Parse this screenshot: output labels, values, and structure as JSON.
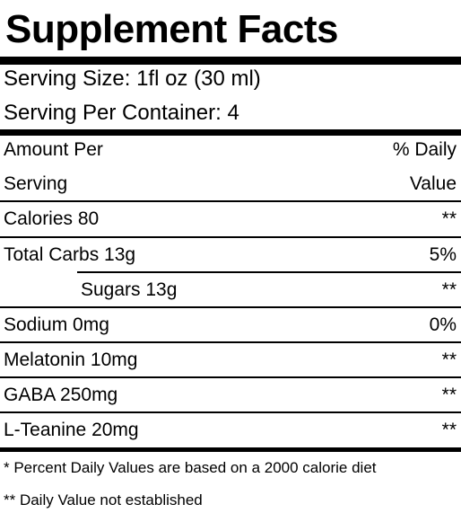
{
  "title": "Supplement Facts",
  "serving_size": "Serving Size: 1fl oz (30 ml)",
  "servings_per_container": "Serving Per Container: 4",
  "header": {
    "left_line1": "Amount Per",
    "left_line2": "Serving",
    "right_line1": "% Daily",
    "right_line2": "Value"
  },
  "rows": [
    {
      "label": "Calories 80",
      "value": "**"
    },
    {
      "label": "Total Carbs 13g",
      "value": "5%"
    },
    {
      "label": "Sugars 13g",
      "value": "**"
    },
    {
      "label": "Sodium 0mg",
      "value": "0%"
    },
    {
      "label": "Melatonin 10mg",
      "value": "**"
    },
    {
      "label": "GABA 250mg",
      "value": "**"
    },
    {
      "label": "L-Teanine 20mg",
      "value": "**"
    }
  ],
  "footnotes": {
    "percent": "* Percent Daily Values are based on a 2000 calorie diet",
    "not_established": "** Daily Value not established"
  }
}
